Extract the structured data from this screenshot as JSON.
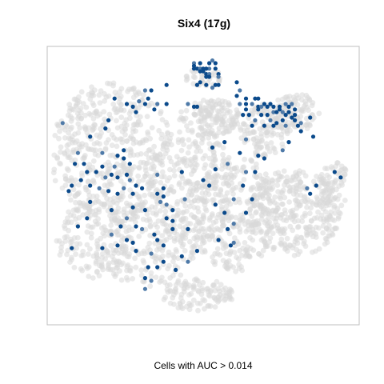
{
  "chart_data": {
    "type": "scatter",
    "title": "Six4 (17g)",
    "caption": "Cells with AUC > 0.014",
    "xlabel": "",
    "ylabel": "",
    "xlim": [
      0,
      100
    ],
    "ylim": [
      0,
      100
    ],
    "grid": false,
    "legend": "none",
    "colors": {
      "background_cells": "#d9d9d9",
      "high_auc": "#0b4a8b",
      "mid_auc": "#4f7aa8",
      "frame": "#bfbfbf"
    },
    "background_regions": [
      {
        "cx": 20,
        "cy": 62,
        "rx": 20,
        "ry": 26,
        "n": 520
      },
      {
        "cx": 14,
        "cy": 30,
        "rx": 12,
        "ry": 14,
        "n": 140
      },
      {
        "cx": 32,
        "cy": 28,
        "rx": 16,
        "ry": 16,
        "n": 220
      },
      {
        "cx": 46,
        "cy": 50,
        "rx": 14,
        "ry": 22,
        "n": 260
      },
      {
        "cx": 60,
        "cy": 40,
        "rx": 14,
        "ry": 22,
        "n": 320
      },
      {
        "cx": 70,
        "cy": 70,
        "rx": 8,
        "ry": 10,
        "n": 120
      },
      {
        "cx": 80,
        "cy": 40,
        "rx": 15,
        "ry": 16,
        "n": 330
      },
      {
        "cx": 52,
        "cy": 75,
        "rx": 10,
        "ry": 7,
        "n": 150
      },
      {
        "cx": 48,
        "cy": 10,
        "rx": 12,
        "ry": 6,
        "n": 110
      },
      {
        "cx": 80,
        "cy": 77,
        "rx": 8,
        "ry": 7,
        "n": 100
      },
      {
        "cx": 93,
        "cy": 50,
        "rx": 5,
        "ry": 9,
        "n": 60
      },
      {
        "cx": 50,
        "cy": 90,
        "rx": 6,
        "ry": 4,
        "n": 40
      }
    ],
    "active_points": [
      [
        4,
        73
      ],
      [
        13,
        68
      ],
      [
        18,
        71
      ],
      [
        19,
        74
      ],
      [
        9,
        62
      ],
      [
        11,
        58
      ],
      [
        8,
        58
      ],
      [
        17,
        57
      ],
      [
        17,
        62
      ],
      [
        22,
        61
      ],
      [
        24,
        60
      ],
      [
        26,
        58
      ],
      [
        21,
        57
      ],
      [
        24,
        63
      ],
      [
        12,
        55
      ],
      [
        15,
        55
      ],
      [
        18,
        53
      ],
      [
        20,
        54
      ],
      [
        22,
        53
      ],
      [
        25,
        54
      ],
      [
        26,
        52
      ],
      [
        28,
        50
      ],
      [
        10,
        52
      ],
      [
        13,
        50
      ],
      [
        16,
        49
      ],
      [
        19,
        48
      ],
      [
        6,
        48
      ],
      [
        7,
        50
      ],
      [
        24,
        49
      ],
      [
        22,
        47
      ],
      [
        27,
        47
      ],
      [
        30,
        49
      ],
      [
        35,
        54
      ],
      [
        35,
        47
      ],
      [
        37,
        46
      ],
      [
        37,
        49
      ],
      [
        38,
        43
      ],
      [
        40,
        41
      ],
      [
        27,
        42
      ],
      [
        31,
        41
      ],
      [
        36,
        44
      ],
      [
        38,
        38
      ],
      [
        40,
        37
      ],
      [
        20,
        41
      ],
      [
        25,
        38
      ],
      [
        13,
        44
      ],
      [
        12,
        38
      ],
      [
        9,
        35
      ],
      [
        30,
        34
      ],
      [
        35,
        30
      ],
      [
        37,
        28
      ],
      [
        34,
        32
      ],
      [
        33,
        25
      ],
      [
        40,
        34
      ],
      [
        37,
        22
      ],
      [
        32,
        20
      ],
      [
        33,
        15
      ],
      [
        22,
        28
      ],
      [
        28,
        26
      ],
      [
        27,
        29
      ],
      [
        20,
        32
      ],
      [
        23,
        35
      ],
      [
        17,
        27
      ],
      [
        7,
        27
      ],
      [
        31,
        12
      ],
      [
        31,
        16
      ],
      [
        35,
        20
      ],
      [
        41,
        19
      ],
      [
        31,
        85
      ],
      [
        32,
        82
      ],
      [
        33,
        85
      ],
      [
        31,
        80
      ],
      [
        29,
        81
      ],
      [
        27,
        79
      ],
      [
        28,
        77
      ],
      [
        34,
        78
      ],
      [
        35,
        80
      ],
      [
        38,
        80
      ],
      [
        21,
        82
      ],
      [
        25,
        80
      ],
      [
        45,
        80
      ],
      [
        47,
        79
      ],
      [
        48,
        79
      ],
      [
        38,
        87
      ],
      [
        47,
        95
      ],
      [
        49,
        95
      ],
      [
        47,
        94
      ],
      [
        48,
        93
      ],
      [
        49,
        93
      ],
      [
        47,
        93
      ],
      [
        50,
        93
      ],
      [
        51,
        91
      ],
      [
        52,
        93
      ],
      [
        52,
        95
      ],
      [
        51,
        93
      ],
      [
        50,
        92
      ],
      [
        52,
        91
      ],
      [
        54,
        93
      ],
      [
        55,
        91
      ],
      [
        54,
        95
      ],
      [
        53,
        96
      ],
      [
        49,
        92
      ],
      [
        51,
        90
      ],
      [
        52,
        90
      ],
      [
        55,
        90
      ],
      [
        51,
        87
      ],
      [
        48,
        87
      ],
      [
        49,
        88
      ],
      [
        53,
        86
      ],
      [
        54,
        87
      ],
      [
        55,
        87
      ],
      [
        61,
        88
      ],
      [
        62,
        85
      ],
      [
        61,
        83
      ],
      [
        64,
        82
      ],
      [
        64,
        80
      ],
      [
        66,
        80
      ],
      [
        67,
        82
      ],
      [
        68,
        79
      ],
      [
        68,
        82
      ],
      [
        69,
        79
      ],
      [
        70,
        80
      ],
      [
        71,
        79
      ],
      [
        72,
        80
      ],
      [
        73,
        77
      ],
      [
        73,
        79
      ],
      [
        74,
        77
      ],
      [
        75,
        79
      ],
      [
        76,
        77
      ],
      [
        77,
        76
      ],
      [
        78,
        79
      ],
      [
        78,
        77
      ],
      [
        79,
        80
      ],
      [
        80,
        78
      ],
      [
        79,
        75
      ],
      [
        80,
        74
      ],
      [
        77,
        72
      ],
      [
        76,
        74
      ],
      [
        74,
        73
      ],
      [
        73,
        72
      ],
      [
        72,
        74
      ],
      [
        71,
        76
      ],
      [
        69,
        76
      ],
      [
        68,
        78
      ],
      [
        67,
        74
      ],
      [
        66,
        72
      ],
      [
        70,
        72
      ],
      [
        75,
        78
      ],
      [
        77,
        80
      ],
      [
        64,
        78
      ],
      [
        63,
        76
      ],
      [
        65,
        76
      ],
      [
        62,
        80
      ],
      [
        80,
        76
      ],
      [
        81,
        72
      ],
      [
        82,
        70
      ],
      [
        82,
        73
      ],
      [
        85,
        75
      ],
      [
        86,
        68
      ],
      [
        78,
        66
      ],
      [
        76,
        63
      ],
      [
        68,
        61
      ],
      [
        70,
        60
      ],
      [
        67,
        55
      ],
      [
        64,
        55
      ],
      [
        63,
        50
      ],
      [
        66,
        45
      ],
      [
        64,
        40
      ],
      [
        60,
        36
      ],
      [
        58,
        34
      ],
      [
        57,
        40
      ],
      [
        59,
        28
      ],
      [
        60,
        29
      ],
      [
        55,
        30
      ],
      [
        54,
        43
      ],
      [
        52,
        50
      ],
      [
        60,
        45
      ],
      [
        54,
        56
      ],
      [
        50,
        52
      ],
      [
        62,
        62
      ],
      [
        64,
        67
      ],
      [
        93,
        55
      ],
      [
        95,
        53
      ],
      [
        87,
        50
      ],
      [
        84,
        49
      ],
      [
        85,
        47
      ],
      [
        53,
        64
      ],
      [
        57,
        66
      ],
      [
        45,
        22
      ],
      [
        48,
        26
      ],
      [
        43,
        24
      ],
      [
        45,
        34
      ],
      [
        44,
        45
      ],
      [
        28,
        35
      ],
      [
        25,
        30
      ],
      [
        43,
        55
      ],
      [
        58,
        58
      ]
    ]
  }
}
